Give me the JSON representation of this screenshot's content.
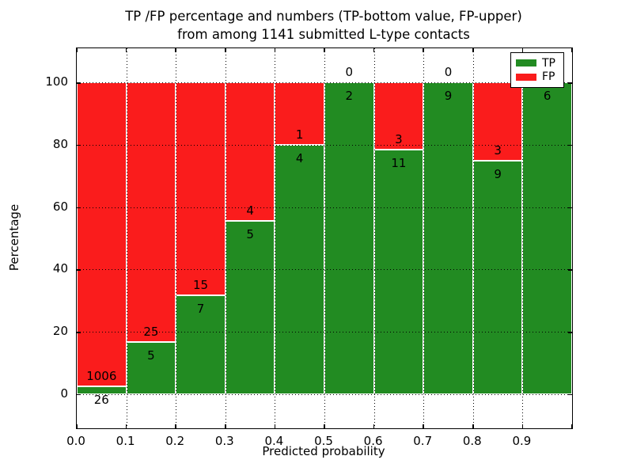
{
  "figure": {
    "title_line1": "TP /FP percentage and numbers (TP-bottom value, FP-upper)",
    "title_line2": "from among 1141 submitted L-type contacts"
  },
  "legend": {
    "items": [
      {
        "label": "TP",
        "color": "#228b22"
      },
      {
        "label": "FP",
        "color": "#fa1c1c"
      }
    ]
  },
  "chart_data": {
    "type": "bar",
    "stacked": true,
    "title": "TP /FP percentage and numbers (TP-bottom value, FP-upper) from among 1141 submitted L-type contacts",
    "xlabel": "Predicted probability",
    "ylabel": "Percentage",
    "categories": [
      "0.0-0.1",
      "0.1-0.2",
      "0.2-0.3",
      "0.3-0.4",
      "0.4-0.5",
      "0.5-0.6",
      "0.6-0.7",
      "0.7-0.8",
      "0.8-0.9",
      "0.9-1.0"
    ],
    "x_tick_labels": [
      "0.0",
      "0.1",
      "0.2",
      "0.3",
      "0.4",
      "0.5",
      "0.6",
      "0.7",
      "0.8",
      "0.9"
    ],
    "y_ticks": [
      0,
      20,
      40,
      60,
      80,
      100
    ],
    "xlim": [
      0.0,
      1.0
    ],
    "ylim": [
      -11,
      111
    ],
    "grid": "dotted",
    "legend_position": "upper right",
    "series": [
      {
        "name": "TP",
        "color": "#228b22",
        "counts": [
          26,
          5,
          7,
          5,
          4,
          2,
          11,
          9,
          9,
          6
        ],
        "percent": [
          2.52,
          16.67,
          31.82,
          55.56,
          80.0,
          100.0,
          78.57,
          100.0,
          75.0,
          100.0
        ]
      },
      {
        "name": "FP",
        "color": "#fa1c1c",
        "counts": [
          1006,
          25,
          15,
          4,
          1,
          0,
          3,
          0,
          3,
          0
        ],
        "percent": [
          97.48,
          83.33,
          68.18,
          44.44,
          20.0,
          0.0,
          21.43,
          0.0,
          25.0,
          0.0
        ]
      }
    ]
  }
}
